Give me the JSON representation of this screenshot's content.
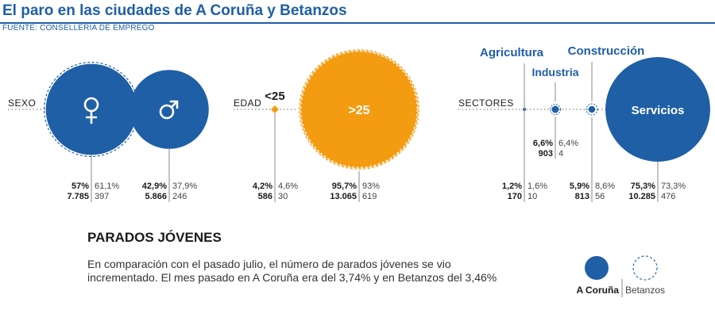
{
  "header": {
    "title": "El paro en las ciudades de A Coruña y Betanzos",
    "source": "FUENTE: CONSELLERÍA DE EMPREGO"
  },
  "colors": {
    "blue": "#1f5fa6",
    "orange": "#f39c12",
    "grey": "#888888"
  },
  "chart_data": {
    "type": "bubble",
    "groups": [
      {
        "label": "SEXO",
        "items": [
          {
            "name": "",
            "icon": "female-symbol-icon",
            "pct_coruna": "57%",
            "n_coruna": "7.785",
            "pct_betanzos": "61,1%",
            "n_betanzos": "397",
            "value_coruna": 57.0,
            "value_betanzos": 61.1,
            "color": "blue"
          },
          {
            "name": "",
            "icon": "male-symbol-icon",
            "pct_coruna": "42,9%",
            "n_coruna": "5.866",
            "pct_betanzos": "37,9%",
            "n_betanzos": "246",
            "value_coruna": 42.9,
            "value_betanzos": 37.9,
            "color": "blue"
          }
        ]
      },
      {
        "label": "EDAD",
        "items": [
          {
            "name": "<25",
            "icon": "",
            "pct_coruna": "4,2%",
            "n_coruna": "586",
            "pct_betanzos": "4,6%",
            "n_betanzos": "30",
            "value_coruna": 4.2,
            "value_betanzos": 4.6,
            "color": "orange"
          },
          {
            "name": ">25",
            "icon": "",
            "pct_coruna": "95,7%",
            "n_coruna": "13.065",
            "pct_betanzos": "93%",
            "n_betanzos": "619",
            "value_coruna": 95.7,
            "value_betanzos": 93.0,
            "color": "orange"
          }
        ]
      },
      {
        "label": "SECTORES",
        "items": [
          {
            "name": "Agricultura",
            "icon": "",
            "pct_coruna": "1,2%",
            "n_coruna": "170",
            "pct_betanzos": "1,6%",
            "n_betanzos": "10",
            "value_coruna": 1.2,
            "value_betanzos": 1.6,
            "color": "blue"
          },
          {
            "name": "Industria",
            "icon": "",
            "pct_coruna": "6,6%",
            "n_coruna": "903",
            "pct_betanzos": "6,4%",
            "n_betanzos": "4",
            "value_coruna": 6.6,
            "value_betanzos": 6.4,
            "color": "blue"
          },
          {
            "name": "Construcción",
            "icon": "",
            "pct_coruna": "5,9%",
            "n_coruna": "813",
            "pct_betanzos": "8,6%",
            "n_betanzos": "56",
            "value_coruna": 5.9,
            "value_betanzos": 8.6,
            "color": "blue"
          },
          {
            "name": "Servicios",
            "icon": "",
            "pct_coruna": "75,3%",
            "n_coruna": "10.285",
            "pct_betanzos": "73,3%",
            "n_betanzos": "476",
            "value_coruna": 75.3,
            "value_betanzos": 73.3,
            "color": "blue"
          }
        ]
      }
    ],
    "legend": [
      {
        "label": "A Coruña",
        "style": "filled"
      },
      {
        "label": "Betanzos",
        "style": "dashed"
      }
    ]
  },
  "section": {
    "title": "PARADOS JÓVENES",
    "body": "En comparación con el pasado julio, el número de parados jóvenes se vio incrementado. El mes pasado en A Coruña era del 3,74% y en Betanzos del 3,46%"
  }
}
